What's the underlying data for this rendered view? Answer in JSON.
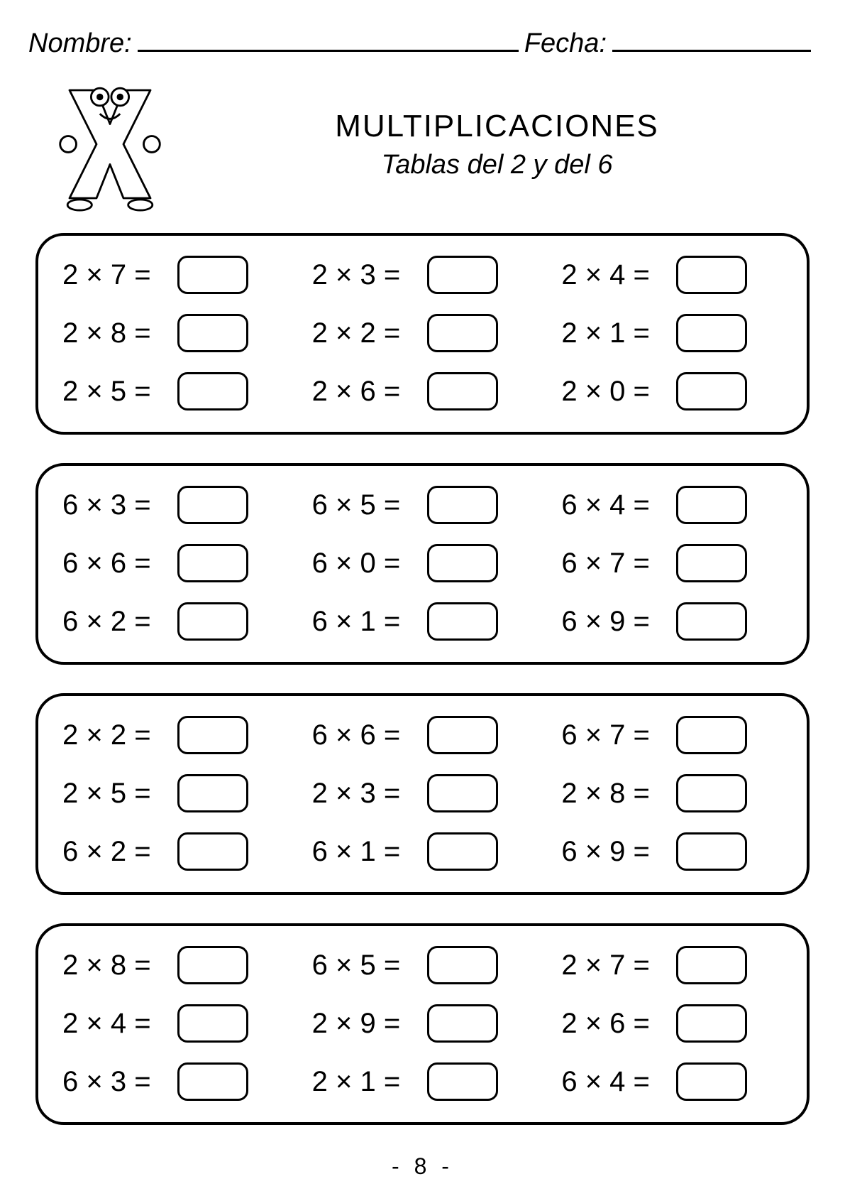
{
  "header": {
    "name_label": "Nombre:",
    "date_label": "Fecha:"
  },
  "title": {
    "main": "MULTIPLICACIONES",
    "sub": "Tablas del 2 y del 6"
  },
  "groups": [
    [
      "2 × 7 =",
      "2 × 3 =",
      "2 × 4 =",
      "2 × 8 =",
      "2 × 2 =",
      "2 × 1 =",
      "2 × 5 =",
      "2 × 6 =",
      "2 × 0 ="
    ],
    [
      "6 × 3 =",
      "6 × 5 =",
      "6 × 4 =",
      "6 × 6 =",
      "6 × 0 =",
      "6 × 7 =",
      "6 × 2 =",
      "6 × 1 =",
      "6 × 9 ="
    ],
    [
      "2 × 2 =",
      "6 × 6 =",
      "6 × 7 =",
      "2 × 5 =",
      "2 × 3 =",
      "2 × 8 =",
      "6 × 2 =",
      "6 × 1 =",
      "6 × 9 ="
    ],
    [
      "2 × 8 =",
      "6 × 5 =",
      "2 × 7 =",
      "2 × 4 =",
      "2 × 9 =",
      "2 × 6 =",
      "6 × 3 =",
      "2 × 1 =",
      "6 × 4 ="
    ]
  ],
  "page_number": "- 8 -",
  "colors": {
    "background": "#ffffff",
    "text": "#000000",
    "border": "#000000"
  }
}
